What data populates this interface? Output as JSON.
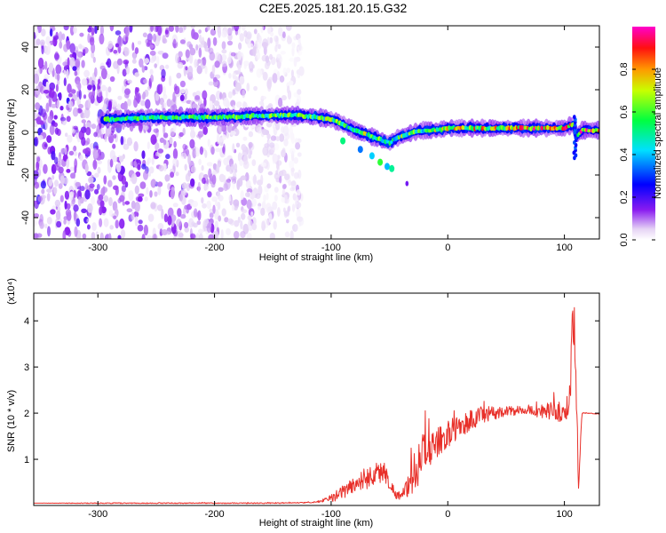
{
  "title": "C2E5.2025.181.20.15.G32",
  "chart_data": [
    {
      "type": "heatmap",
      "xlabel": "Height of straight line (km)",
      "ylabel": "Frequency (Hz)",
      "xlim": [
        -355,
        130
      ],
      "ylim": [
        -50,
        50
      ],
      "xticks": [
        -300,
        -200,
        -100,
        0,
        100
      ],
      "xtick_labels": [
        "-300",
        "-200",
        "-100",
        "0",
        "100"
      ],
      "yticks": [
        -40,
        -20,
        0,
        20,
        40
      ],
      "ytick_labels": [
        "-40",
        "-20",
        "0",
        "20",
        "40"
      ],
      "colorbar": {
        "label": "Normalized spectral amplitude",
        "range": [
          0,
          1
        ],
        "ticks": [
          0.0,
          0.2,
          0.4,
          0.6,
          0.8
        ],
        "tick_labels": [
          "0.0",
          "0.2",
          "0.4",
          "0.6",
          "0.8"
        ],
        "colors": [
          "#ffffff",
          "#d9c2f0",
          "#8000ff",
          "#0000ff",
          "#00ffff",
          "#00ff00",
          "#ffff00",
          "#ff8000",
          "#ff0000",
          "#ff00ff"
        ]
      },
      "ridge": {
        "x": [
          -295,
          -250,
          -200,
          -150,
          -130,
          -110,
          -100,
          -90,
          -80,
          -70,
          -60,
          -55,
          -50,
          -45,
          -40,
          -30,
          -20,
          -10,
          0,
          20,
          40,
          60,
          80,
          100,
          108,
          110,
          115,
          130
        ],
        "y": [
          6,
          7,
          7,
          8,
          8,
          7,
          6,
          4,
          1,
          -1,
          -3,
          -4,
          -5,
          -3,
          -2,
          0,
          1,
          1,
          2,
          2,
          2,
          2,
          2,
          2,
          4,
          -2,
          1,
          1
        ]
      },
      "noise_region": {
        "x_range": [
          -355,
          -125
        ],
        "y_range": [
          -50,
          50
        ]
      },
      "grid": false
    },
    {
      "type": "line",
      "xlabel": "Height of straight line (km)",
      "ylabel": "SNR (10 * v/v)",
      "y_multiplier": "(x10⁴)",
      "xlim": [
        -355,
        130
      ],
      "ylim": [
        0,
        4.6
      ],
      "xticks": [
        -300,
        -200,
        -100,
        0,
        100
      ],
      "xtick_labels": [
        "-300",
        "-200",
        "-100",
        "0",
        "100"
      ],
      "yticks": [
        1,
        2,
        3,
        4
      ],
      "ytick_labels": [
        "1",
        "2",
        "3",
        "4"
      ],
      "series": [
        {
          "color": "#e8302a",
          "x": [
            -355,
            -300,
            -250,
            -200,
            -150,
            -120,
            -110,
            -100,
            -90,
            -80,
            -70,
            -60,
            -55,
            -50,
            -45,
            -40,
            -35,
            -30,
            -25,
            -20,
            -15,
            -10,
            -5,
            0,
            10,
            20,
            30,
            40,
            50,
            60,
            70,
            80,
            90,
            100,
            104,
            106,
            108,
            110,
            112,
            115,
            120,
            130
          ],
          "y": [
            0.05,
            0.05,
            0.05,
            0.05,
            0.05,
            0.06,
            0.08,
            0.15,
            0.3,
            0.45,
            0.6,
            0.7,
            0.75,
            0.5,
            0.25,
            0.2,
            0.35,
            0.65,
            0.95,
            1.15,
            1.25,
            1.3,
            1.45,
            1.55,
            1.7,
            1.85,
            1.95,
            2.0,
            2.05,
            2.05,
            2.05,
            2.05,
            2.05,
            2.0,
            2.2,
            3.2,
            4.3,
            3.0,
            0.3,
            2.0,
            2.0,
            1.98
          ],
          "noise": [
            0,
            0.01,
            0.01,
            0.01,
            0.01,
            0.01,
            0.02,
            0.08,
            0.15,
            0.2,
            0.25,
            0.25,
            0.25,
            0.15,
            0.1,
            0.1,
            0.2,
            0.4,
            0.5,
            0.45,
            0.4,
            0.35,
            0.3,
            0.3,
            0.25,
            0.25,
            0.2,
            0.15,
            0.1,
            0.1,
            0.1,
            0.15,
            0.2,
            0.25,
            0.3,
            0.6,
            0.8,
            0.6,
            0.1,
            0.02,
            0.01,
            0.01
          ]
        }
      ],
      "grid": false
    }
  ]
}
